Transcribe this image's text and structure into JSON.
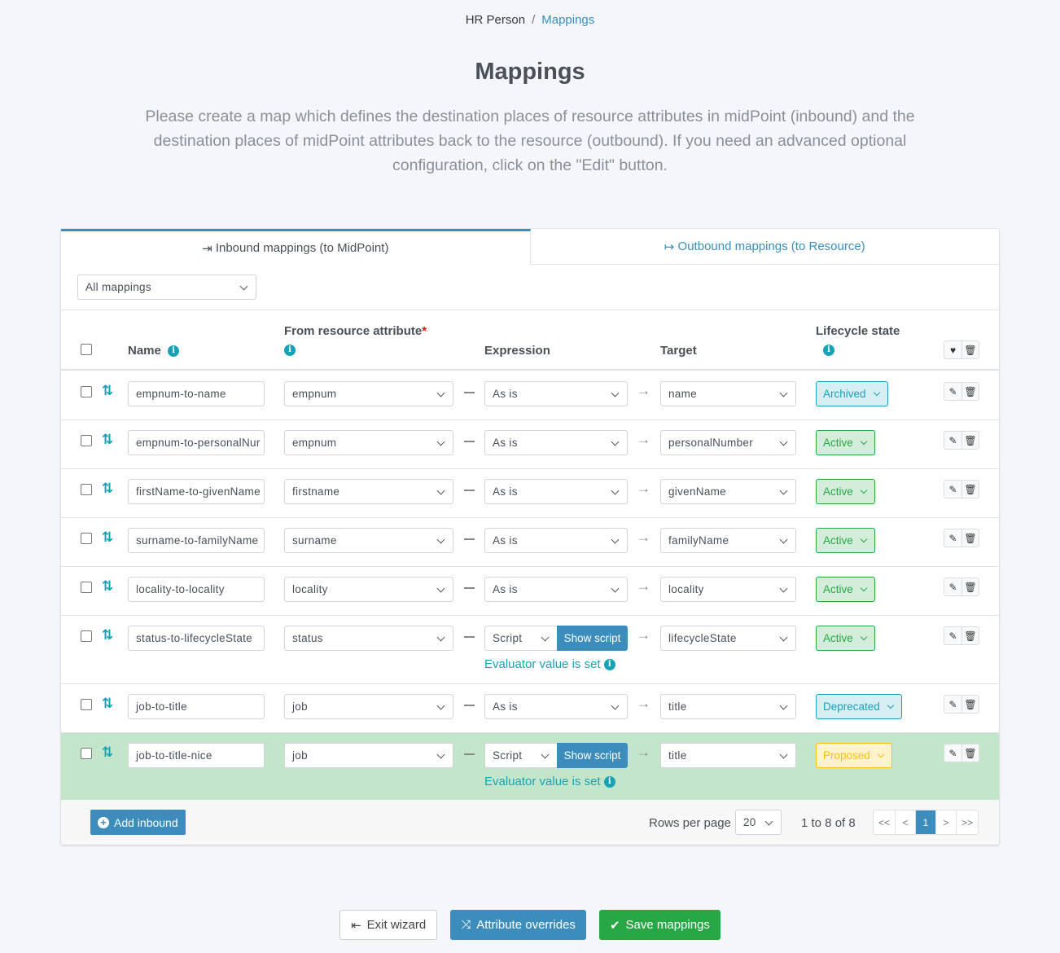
{
  "breadcrumb": {
    "parent": "HR Person",
    "current": "Mappings"
  },
  "title": "Mappings",
  "description": "Please create a map which defines the destination places of resource attributes in midPoint (inbound) and the destination places of midPoint attributes back to the resource (outbound). If you need an advanced optional configuration, click on the \"Edit\" button.",
  "tabs": [
    {
      "label": "Inbound mappings (to MidPoint)",
      "icon": "sign-in-icon",
      "active": true
    },
    {
      "label": "Outbound mappings (to Resource)",
      "icon": "sign-out-icon",
      "active": false
    }
  ],
  "filter": {
    "value": "All mappings"
  },
  "columns": {
    "name": "Name",
    "from": "From resource attribute",
    "required": "*",
    "expression": "Expression",
    "target": "Target",
    "lifecycle": "Lifecycle state"
  },
  "rows": [
    {
      "name": "empnum-to-name",
      "from": "empnum",
      "expression": "As is",
      "target": "name",
      "lifecycle": "Archived"
    },
    {
      "name": "empnum-to-personalNur",
      "from": "empnum",
      "expression": "As is",
      "target": "personalNumber",
      "lifecycle": "Active"
    },
    {
      "name": "firstName-to-givenName",
      "from": "firstname",
      "expression": "As is",
      "target": "givenName",
      "lifecycle": "Active"
    },
    {
      "name": "surname-to-familyName",
      "from": "surname",
      "expression": "As is",
      "target": "familyName",
      "lifecycle": "Active"
    },
    {
      "name": "locality-to-locality",
      "from": "locality",
      "expression": "As is",
      "target": "locality",
      "lifecycle": "Active"
    },
    {
      "name": "status-to-lifecycleState",
      "from": "status",
      "expression": "Script",
      "show_script": "Show script",
      "evaluator": "Evaluator value is set",
      "target": "lifecycleState",
      "lifecycle": "Active"
    },
    {
      "name": "job-to-title",
      "from": "job",
      "expression": "As is",
      "target": "title",
      "lifecycle": "Deprecated"
    },
    {
      "name": "job-to-title-nice",
      "from": "job",
      "expression": "Script",
      "show_script": "Show script",
      "evaluator": "Evaluator value is set",
      "target": "title",
      "lifecycle": "Proposed",
      "highlighted": true
    }
  ],
  "lifecycle_colors": {
    "Archived": {
      "bg": "#d6eff3",
      "border": "#17a2b8",
      "fg": "#17a2b8"
    },
    "Active": {
      "bg": "#d4edda",
      "border": "#28a745",
      "fg": "#28a745"
    },
    "Deprecated": {
      "bg": "#d6eff3",
      "border": "#17a2b8",
      "fg": "#17a2b8"
    },
    "Proposed": {
      "bg": "#fff3cd",
      "border": "#ffc107",
      "fg": "#ffc107"
    }
  },
  "footer": {
    "add_label": "Add inbound",
    "rows_per_page_label": "Rows per page",
    "rows_per_page": "20",
    "range": "1 to 8 of 8",
    "pager": [
      "<<",
      "<",
      "1",
      ">",
      ">>"
    ],
    "current_page": "1"
  },
  "actions": {
    "exit": "Exit wizard",
    "overrides": "Attribute overrides",
    "save": "Save mappings"
  }
}
